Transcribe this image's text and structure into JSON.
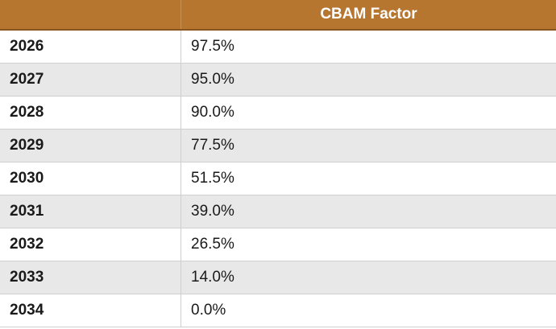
{
  "table": {
    "header": "CBAM Factor",
    "rows": [
      [
        "2026",
        "97.5%"
      ],
      [
        "2027",
        "95.0%"
      ],
      [
        "2028",
        "90.0%"
      ],
      [
        "2029",
        "77.5%"
      ],
      [
        "2030",
        "51.5%"
      ],
      [
        "2031",
        "39.0%"
      ],
      [
        "2032",
        "26.5%"
      ],
      [
        "2033",
        "14.0%"
      ],
      [
        "2034",
        "0.0%"
      ]
    ]
  }
}
